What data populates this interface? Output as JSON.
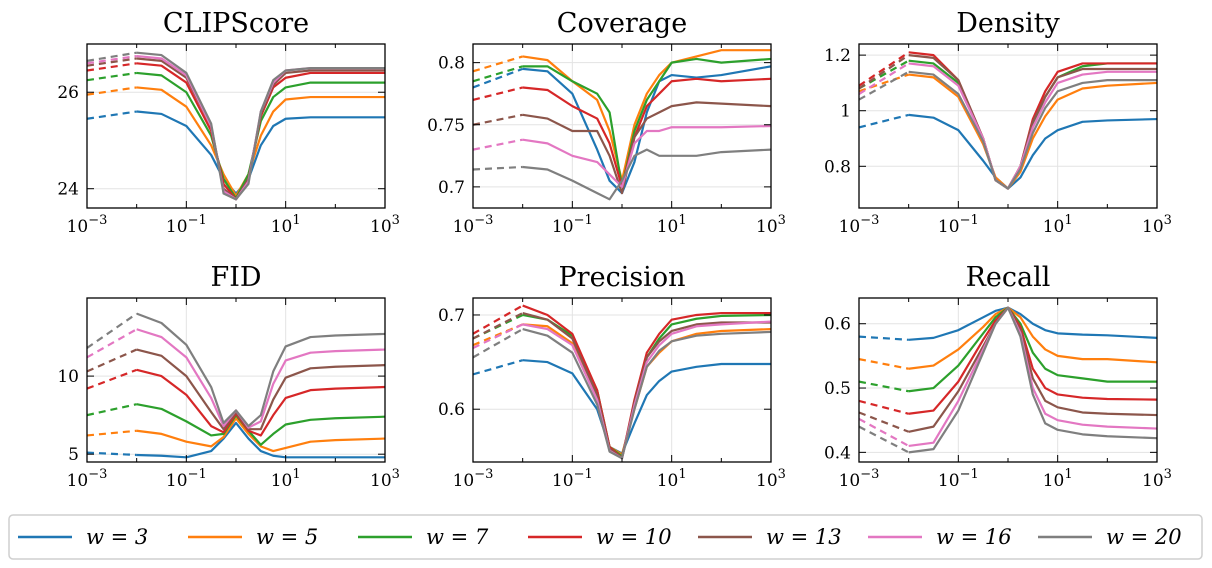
{
  "chart_data": {
    "type": "line",
    "x": [
      0.001,
      0.01,
      0.0316,
      0.1,
      0.316,
      0.562,
      1,
      1.78,
      3.16,
      5.62,
      10,
      31.6,
      100,
      1000
    ],
    "dashed_until_index": 1,
    "xlim": [
      0.001,
      1000
    ],
    "xscale": "log",
    "x_ticks": [
      {
        "value": 0.001,
        "base": "10",
        "exp": "−3"
      },
      {
        "value": 0.1,
        "base": "10",
        "exp": "−1"
      },
      {
        "value": 10,
        "base": "10",
        "exp": "1"
      },
      {
        "value": 1000,
        "base": "10",
        "exp": "3"
      }
    ],
    "grid": true,
    "legend_position": "bottom",
    "legend": [
      "w = 3",
      "w = 5",
      "w = 7",
      "w = 10",
      "w = 13",
      "w = 16",
      "w = 20"
    ],
    "colors": [
      "#1f77b4",
      "#ff7f0e",
      "#2ca02c",
      "#d62728",
      "#8c564b",
      "#e377c2",
      "#7f7f7f"
    ],
    "subplots": [
      {
        "title": "CLIPScore",
        "ylim": [
          23.6,
          27.0
        ],
        "yticks": [
          24,
          26
        ],
        "series": [
          [
            25.45,
            25.6,
            25.55,
            25.3,
            24.7,
            24.2,
            23.9,
            24.2,
            24.9,
            25.3,
            25.45,
            25.48,
            25.48,
            25.48
          ],
          [
            25.95,
            26.1,
            26.05,
            25.7,
            24.9,
            24.3,
            23.85,
            24.3,
            25.1,
            25.6,
            25.85,
            25.9,
            25.9,
            25.9
          ],
          [
            26.25,
            26.4,
            26.35,
            26.0,
            25.1,
            24.2,
            23.8,
            24.3,
            25.4,
            25.9,
            26.1,
            26.2,
            26.2,
            26.2
          ],
          [
            26.45,
            26.6,
            26.55,
            26.2,
            25.2,
            24.1,
            23.78,
            24.2,
            25.5,
            26.1,
            26.3,
            26.4,
            26.4,
            26.4
          ],
          [
            26.55,
            26.7,
            26.65,
            26.3,
            25.3,
            24.0,
            23.78,
            24.2,
            25.55,
            26.15,
            26.4,
            26.45,
            26.45,
            26.45
          ],
          [
            26.6,
            26.75,
            26.7,
            26.35,
            25.3,
            23.95,
            23.78,
            24.15,
            25.6,
            26.2,
            26.45,
            26.5,
            26.5,
            26.5
          ],
          [
            26.65,
            26.82,
            26.77,
            26.4,
            25.35,
            23.9,
            23.78,
            24.1,
            25.6,
            26.25,
            26.45,
            26.5,
            26.5,
            26.5
          ]
        ]
      },
      {
        "title": "Coverage",
        "ylim": [
          0.683,
          0.815
        ],
        "yticks": [
          0.7,
          0.75,
          0.8
        ],
        "series": [
          [
            0.78,
            0.795,
            0.793,
            0.775,
            0.73,
            0.705,
            0.695,
            0.72,
            0.76,
            0.785,
            0.79,
            0.788,
            0.79,
            0.797
          ],
          [
            0.793,
            0.805,
            0.802,
            0.785,
            0.77,
            0.745,
            0.705,
            0.75,
            0.775,
            0.79,
            0.8,
            0.805,
            0.81,
            0.81
          ],
          [
            0.785,
            0.797,
            0.797,
            0.785,
            0.775,
            0.76,
            0.7,
            0.745,
            0.77,
            0.785,
            0.8,
            0.803,
            0.8,
            0.803
          ],
          [
            0.77,
            0.78,
            0.778,
            0.765,
            0.755,
            0.735,
            0.7,
            0.74,
            0.765,
            0.775,
            0.785,
            0.787,
            0.785,
            0.787
          ],
          [
            0.75,
            0.758,
            0.755,
            0.745,
            0.745,
            0.725,
            0.695,
            0.74,
            0.755,
            0.76,
            0.765,
            0.768,
            0.767,
            0.765
          ],
          [
            0.73,
            0.738,
            0.735,
            0.725,
            0.72,
            0.71,
            0.7,
            0.735,
            0.745,
            0.745,
            0.748,
            0.748,
            0.748,
            0.749
          ],
          [
            0.714,
            0.716,
            0.714,
            0.705,
            0.695,
            0.69,
            0.705,
            0.725,
            0.73,
            0.725,
            0.725,
            0.725,
            0.728,
            0.73
          ]
        ]
      },
      {
        "title": "Density",
        "ylim": [
          0.65,
          1.24
        ],
        "yticks": [
          0.8,
          1.0,
          1.2
        ],
        "series": [
          [
            0.94,
            0.985,
            0.975,
            0.93,
            0.82,
            0.76,
            0.72,
            0.76,
            0.84,
            0.9,
            0.93,
            0.96,
            0.965,
            0.97
          ],
          [
            1.07,
            1.13,
            1.12,
            1.05,
            0.88,
            0.76,
            0.72,
            0.78,
            0.9,
            0.98,
            1.04,
            1.08,
            1.09,
            1.1
          ],
          [
            1.08,
            1.18,
            1.17,
            1.1,
            0.9,
            0.75,
            0.72,
            0.8,
            0.95,
            1.05,
            1.12,
            1.16,
            1.17,
            1.17
          ],
          [
            1.09,
            1.21,
            1.2,
            1.11,
            0.9,
            0.75,
            0.72,
            0.8,
            0.97,
            1.07,
            1.14,
            1.17,
            1.17,
            1.17
          ],
          [
            1.08,
            1.2,
            1.19,
            1.11,
            0.9,
            0.75,
            0.72,
            0.8,
            0.96,
            1.05,
            1.12,
            1.15,
            1.15,
            1.15
          ],
          [
            1.06,
            1.17,
            1.16,
            1.09,
            0.9,
            0.75,
            0.72,
            0.8,
            0.94,
            1.03,
            1.1,
            1.13,
            1.14,
            1.14
          ],
          [
            1.04,
            1.14,
            1.13,
            1.06,
            0.89,
            0.75,
            0.72,
            0.79,
            0.92,
            1.01,
            1.07,
            1.1,
            1.11,
            1.11
          ]
        ]
      },
      {
        "title": "FID",
        "ylim": [
          4.5,
          15.0
        ],
        "yticks": [
          5,
          10
        ],
        "series": [
          [
            5.1,
            4.95,
            4.9,
            4.8,
            5.2,
            6.0,
            7.0,
            6.0,
            5.2,
            4.9,
            4.8,
            4.8,
            4.8,
            4.8
          ],
          [
            6.2,
            6.5,
            6.3,
            5.8,
            5.5,
            6.1,
            7.3,
            6.3,
            5.5,
            5.2,
            5.4,
            5.8,
            5.9,
            6.0
          ],
          [
            7.5,
            8.2,
            7.9,
            7.1,
            6.2,
            6.3,
            7.5,
            6.5,
            5.6,
            6.3,
            6.9,
            7.2,
            7.3,
            7.4
          ],
          [
            9.2,
            10.4,
            10.0,
            8.8,
            6.8,
            6.4,
            7.6,
            6.5,
            6.2,
            7.5,
            8.6,
            9.1,
            9.2,
            9.3
          ],
          [
            10.3,
            11.7,
            11.3,
            10.0,
            7.7,
            6.6,
            7.7,
            6.6,
            6.6,
            8.5,
            9.9,
            10.5,
            10.6,
            10.7
          ],
          [
            11.2,
            13.0,
            12.5,
            11.2,
            8.6,
            6.8,
            7.8,
            6.7,
            7.1,
            9.5,
            11.0,
            11.5,
            11.6,
            11.7
          ],
          [
            11.8,
            14.0,
            13.4,
            12.0,
            9.3,
            7.0,
            7.8,
            6.8,
            7.5,
            10.3,
            11.9,
            12.5,
            12.6,
            12.7
          ]
        ]
      },
      {
        "title": "Precision",
        "ylim": [
          0.544,
          0.718
        ],
        "yticks": [
          0.6,
          0.7
        ],
        "series": [
          [
            0.637,
            0.652,
            0.65,
            0.638,
            0.6,
            0.56,
            0.553,
            0.585,
            0.615,
            0.63,
            0.64,
            0.645,
            0.648,
            0.648
          ],
          [
            0.668,
            0.69,
            0.688,
            0.67,
            0.615,
            0.56,
            0.552,
            0.6,
            0.645,
            0.66,
            0.672,
            0.68,
            0.683,
            0.685
          ],
          [
            0.675,
            0.7,
            0.695,
            0.678,
            0.62,
            0.56,
            0.55,
            0.605,
            0.655,
            0.675,
            0.69,
            0.696,
            0.699,
            0.7
          ],
          [
            0.68,
            0.71,
            0.7,
            0.68,
            0.62,
            0.56,
            0.548,
            0.61,
            0.66,
            0.68,
            0.695,
            0.7,
            0.702,
            0.702
          ],
          [
            0.675,
            0.702,
            0.695,
            0.675,
            0.615,
            0.558,
            0.548,
            0.607,
            0.655,
            0.672,
            0.683,
            0.69,
            0.692,
            0.692
          ],
          [
            0.665,
            0.69,
            0.685,
            0.668,
            0.61,
            0.556,
            0.548,
            0.604,
            0.65,
            0.668,
            0.68,
            0.688,
            0.69,
            0.693
          ],
          [
            0.655,
            0.685,
            0.678,
            0.66,
            0.605,
            0.555,
            0.548,
            0.6,
            0.645,
            0.662,
            0.672,
            0.678,
            0.68,
            0.682
          ]
        ]
      },
      {
        "title": "Recall",
        "ylim": [
          0.385,
          0.64
        ],
        "yticks": [
          0.4,
          0.5,
          0.6
        ],
        "series": [
          [
            0.58,
            0.575,
            0.578,
            0.59,
            0.61,
            0.62,
            0.625,
            0.615,
            0.6,
            0.59,
            0.585,
            0.583,
            0.582,
            0.578
          ],
          [
            0.545,
            0.53,
            0.535,
            0.56,
            0.595,
            0.615,
            0.625,
            0.61,
            0.58,
            0.56,
            0.55,
            0.545,
            0.545,
            0.54
          ],
          [
            0.51,
            0.495,
            0.5,
            0.535,
            0.585,
            0.61,
            0.625,
            0.6,
            0.555,
            0.53,
            0.52,
            0.515,
            0.51,
            0.51
          ],
          [
            0.48,
            0.46,
            0.465,
            0.51,
            0.575,
            0.605,
            0.625,
            0.595,
            0.53,
            0.5,
            0.49,
            0.485,
            0.483,
            0.482
          ],
          [
            0.462,
            0.432,
            0.44,
            0.495,
            0.565,
            0.6,
            0.625,
            0.59,
            0.515,
            0.48,
            0.47,
            0.462,
            0.46,
            0.458
          ],
          [
            0.452,
            0.41,
            0.415,
            0.48,
            0.56,
            0.6,
            0.625,
            0.585,
            0.5,
            0.46,
            0.45,
            0.443,
            0.44,
            0.437
          ],
          [
            0.44,
            0.4,
            0.405,
            0.465,
            0.555,
            0.6,
            0.625,
            0.58,
            0.49,
            0.445,
            0.435,
            0.428,
            0.425,
            0.422
          ]
        ]
      }
    ]
  }
}
